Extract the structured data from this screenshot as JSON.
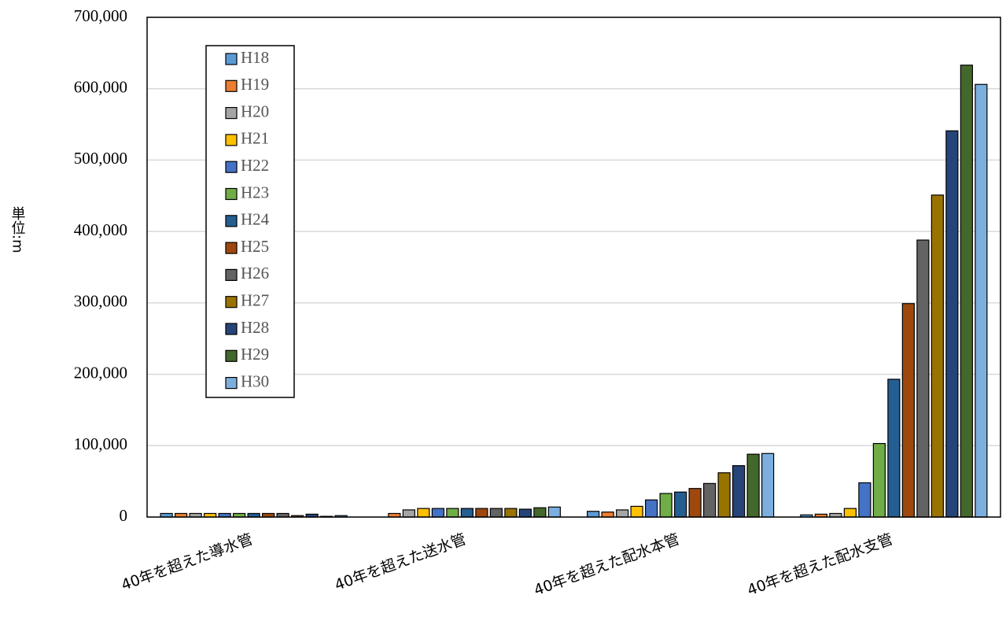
{
  "chart_data": {
    "type": "bar",
    "y_label": "単位:m",
    "categories": [
      "40年を超えた導水管",
      "40年を超えた送水管",
      "40年を超えた配水本管",
      "40年を超えた配水支管"
    ],
    "series": [
      {
        "name": "H18",
        "color": "#5b9bd5",
        "values": [
          5000,
          0,
          8000,
          3000
        ]
      },
      {
        "name": "H19",
        "color": "#ed7d31",
        "values": [
          5000,
          5000,
          7000,
          4000
        ]
      },
      {
        "name": "H20",
        "color": "#a5a5a5",
        "values": [
          5000,
          10000,
          10000,
          5000
        ]
      },
      {
        "name": "H21",
        "color": "#ffc000",
        "values": [
          5000,
          12000,
          15000,
          12000
        ]
      },
      {
        "name": "H22",
        "color": "#4472c4",
        "values": [
          5000,
          12000,
          24000,
          48000
        ]
      },
      {
        "name": "H23",
        "color": "#70ad47",
        "values": [
          5000,
          12000,
          33000,
          103000
        ]
      },
      {
        "name": "H24",
        "color": "#255e91",
        "values": [
          5000,
          12000,
          35000,
          193000
        ]
      },
      {
        "name": "H25",
        "color": "#9e480e",
        "values": [
          5000,
          12000,
          40000,
          299000
        ]
      },
      {
        "name": "H26",
        "color": "#636363",
        "values": [
          5000,
          12000,
          47000,
          388000
        ]
      },
      {
        "name": "H27",
        "color": "#997300",
        "values": [
          2000,
          12000,
          62000,
          451000
        ]
      },
      {
        "name": "H28",
        "color": "#264478",
        "values": [
          4000,
          11000,
          72000,
          541000
        ]
      },
      {
        "name": "H29",
        "color": "#43682b",
        "values": [
          1000,
          13000,
          88000,
          633000
        ]
      },
      {
        "name": "H30",
        "color": "#7cafdd",
        "values": [
          2000,
          14000,
          89000,
          606000
        ]
      }
    ],
    "ylim": [
      0,
      700000
    ],
    "yticks": [
      0,
      {
        "value": 100000,
        "label": "100,000"
      },
      {
        "value": 200000,
        "label": "200,000"
      },
      {
        "value": 300000,
        "label": "300,000"
      },
      {
        "value": 400000,
        "label": "400,000"
      },
      {
        "value": 500000,
        "label": "500,000"
      },
      {
        "value": 600000,
        "label": "600,000"
      },
      {
        "value": 700000,
        "label": "700,000"
      }
    ],
    "grid": true
  }
}
